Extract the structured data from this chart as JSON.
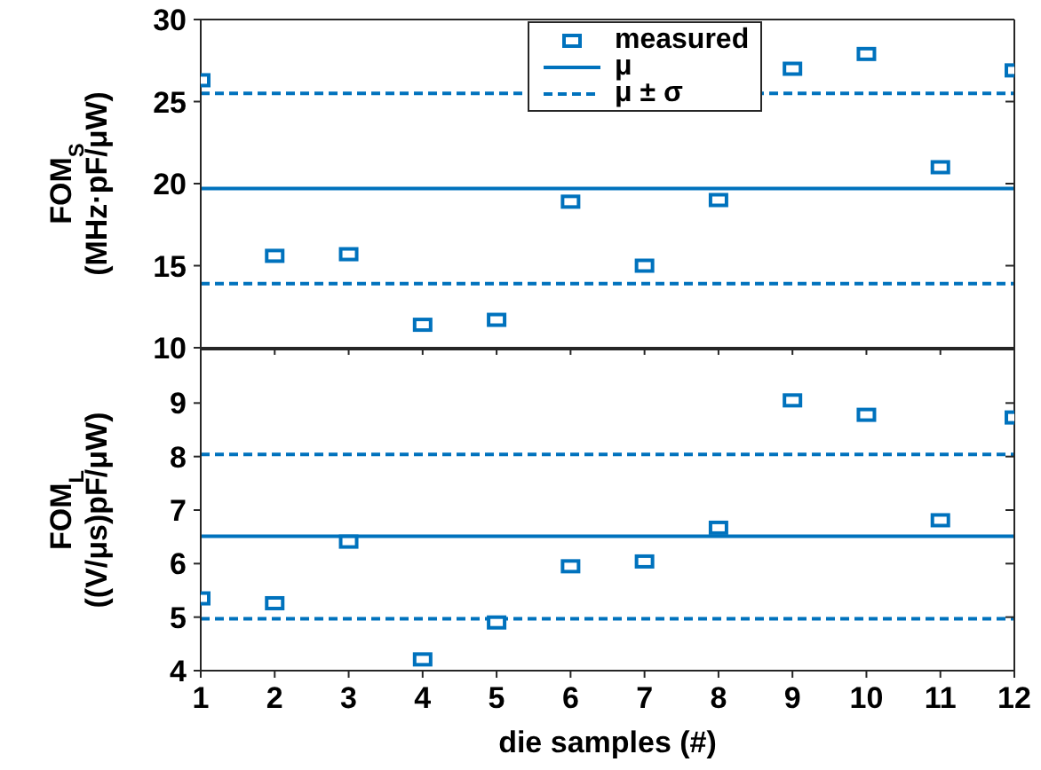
{
  "chart_data": [
    {
      "type": "scatter",
      "ylabel": "FOM$_{S}$\n(MHz·pF/μW)",
      "xlim": [
        1,
        12
      ],
      "xticks": [
        1,
        2,
        3,
        4,
        5,
        6,
        7,
        8,
        9,
        10,
        11,
        12
      ],
      "ylim": [
        10,
        30
      ],
      "yticks": [
        10,
        15,
        20,
        25,
        30
      ],
      "tick_labels": "y",
      "legend": "top",
      "marker": "square",
      "series": [
        {
          "name": "measured",
          "color": "#0072bd",
          "x": [
            1,
            2,
            3,
            4,
            5,
            6,
            7,
            8,
            9,
            10,
            11,
            12
          ],
          "values": [
            26.3,
            15.6,
            15.7,
            11.4,
            11.7,
            18.9,
            15.0,
            19.0,
            27.0,
            27.9,
            21.0,
            26.9
          ]
        },
        {
          "name": "μ",
          "type": "line",
          "marker": "none",
          "line_style": "solid",
          "color": "#0072bd",
          "x": [
            1,
            12
          ],
          "values": [
            19.7,
            19.7
          ]
        },
        {
          "name": "μ ± σ",
          "type": "line",
          "marker": "none",
          "line_style": "dashed",
          "color": "#0072bd",
          "x": [
            1,
            12
          ],
          "values": [
            25.5,
            25.5
          ]
        },
        {
          "type": "line",
          "marker": "none",
          "line_style": "dashed",
          "color": "#0072bd",
          "x": [
            1,
            12
          ],
          "values": [
            13.9,
            13.9
          ]
        }
      ]
    },
    {
      "type": "scatter",
      "ylabel": "FOM$_{L}$\n((V/μs)pF/μW)",
      "xlabel": "die samples (#)",
      "xlim": [
        1,
        12
      ],
      "xticks": [
        1,
        2,
        3,
        4,
        5,
        6,
        7,
        8,
        9,
        10,
        11,
        12
      ],
      "ylim": [
        4,
        10
      ],
      "yticks": [
        4,
        5,
        6,
        7,
        8,
        9
      ],
      "marker": "square",
      "series": [
        {
          "color": "#0072bd",
          "x": [
            1,
            2,
            3,
            4,
            5,
            6,
            7,
            8,
            9,
            10,
            11,
            12
          ],
          "values": [
            5.35,
            5.26,
            6.41,
            4.21,
            4.9,
            5.95,
            6.04,
            6.67,
            9.05,
            8.78,
            6.81,
            8.73
          ]
        },
        {
          "type": "line",
          "marker": "none",
          "line_style": "solid",
          "color": "#0072bd",
          "x": [
            1,
            12
          ],
          "values": [
            6.51,
            6.51
          ]
        },
        {
          "type": "line",
          "marker": "none",
          "line_style": "dashed",
          "color": "#0072bd",
          "x": [
            1,
            12
          ],
          "values": [
            8.04,
            8.04
          ]
        },
        {
          "type": "line",
          "marker": "none",
          "line_style": "dashed",
          "color": "#0072bd",
          "x": [
            1,
            12
          ],
          "values": [
            4.97,
            4.97
          ]
        }
      ]
    }
  ]
}
